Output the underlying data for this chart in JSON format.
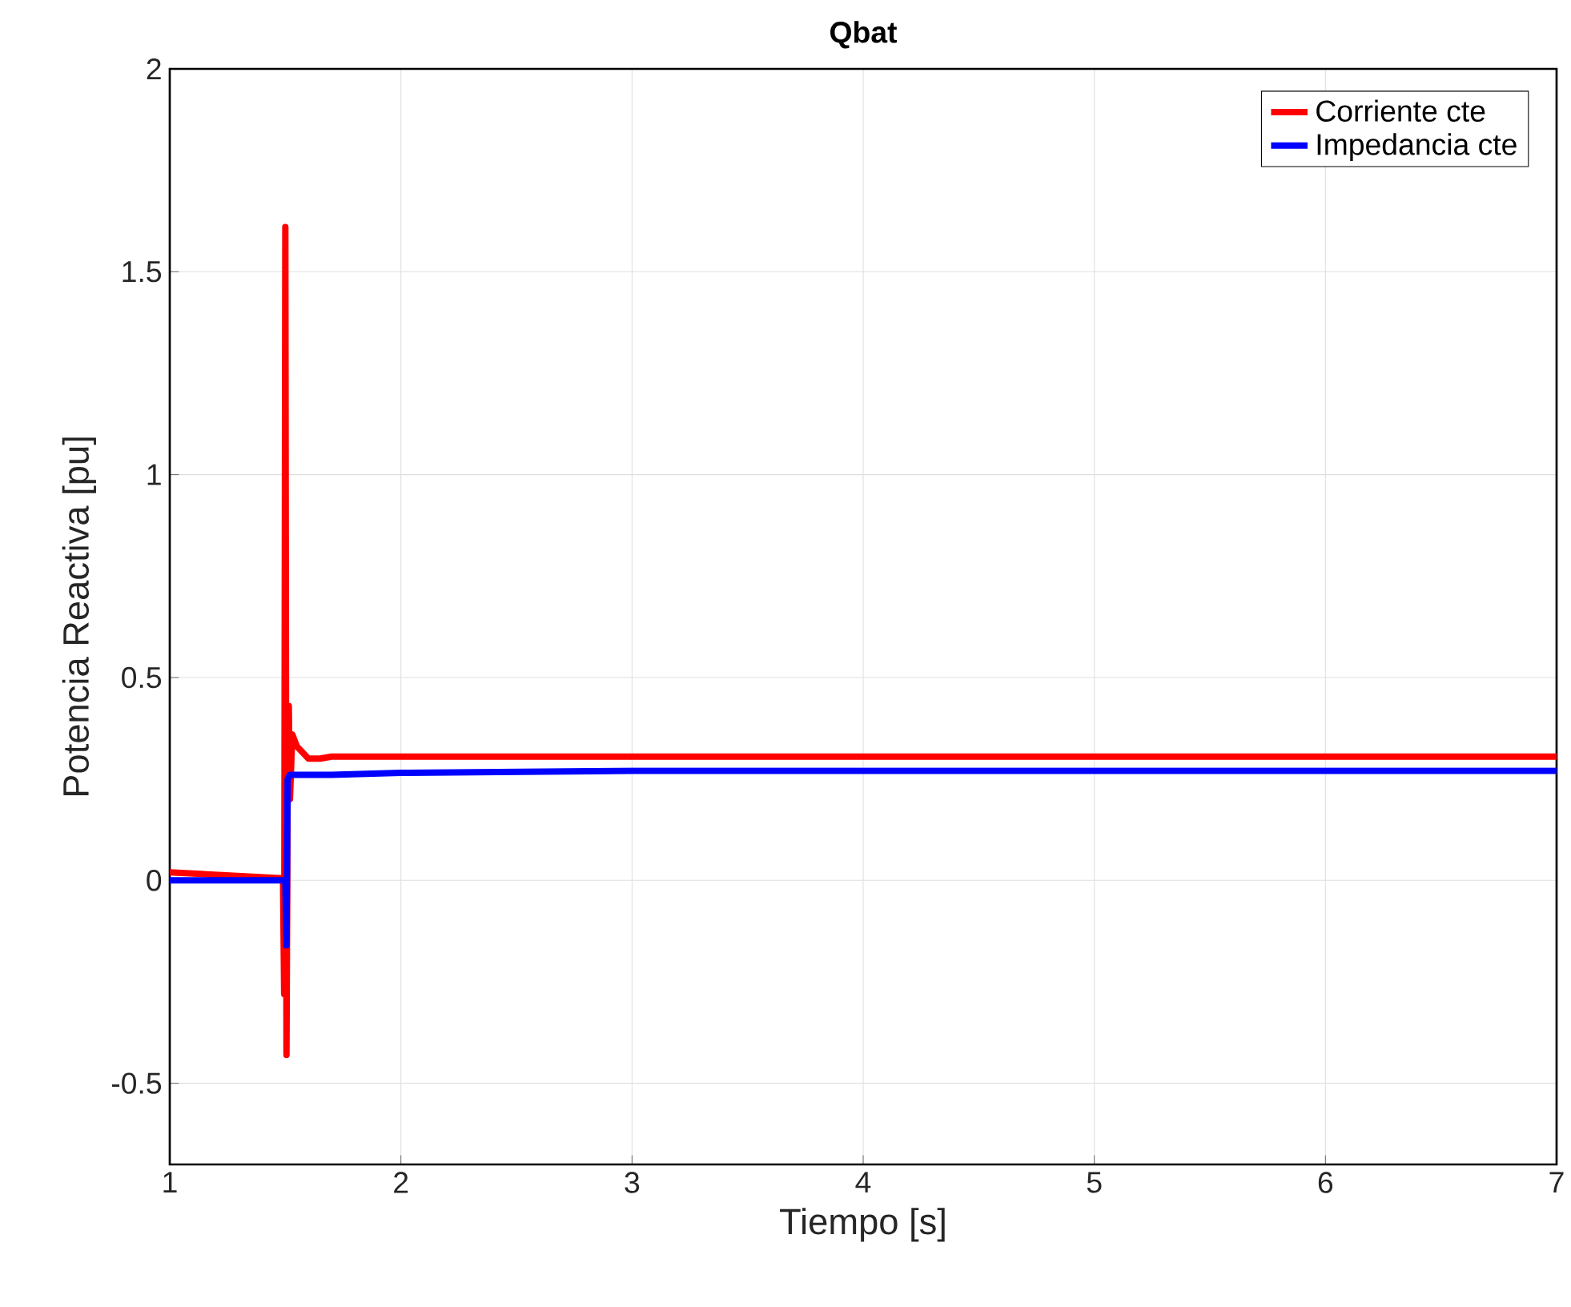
{
  "chart_data": {
    "type": "line",
    "title": "Qbat",
    "xlabel": "Tiempo [s]",
    "ylabel": "Potencia Reactiva [pu]",
    "xlim": [
      1,
      7
    ],
    "xticks": [
      1,
      2,
      3,
      4,
      5,
      6,
      7
    ],
    "ylim": [
      -0.7,
      2
    ],
    "yticks": [
      -0.5,
      0,
      0.5,
      1,
      1.5,
      2
    ],
    "grid": true,
    "legend": "top right",
    "line_style": "solid",
    "marker": "none",
    "series": [
      {
        "name": "Corriente cte",
        "color": "#ff0000",
        "x": [
          1,
          1.49,
          1.495,
          1.5,
          1.505,
          1.51,
          1.515,
          1.52,
          1.53,
          1.55,
          1.6,
          1.65,
          1.7,
          2,
          7
        ],
        "values": [
          0.02,
          0.005,
          -0.28,
          1.61,
          -0.43,
          0.22,
          0.43,
          0.2,
          0.36,
          0.33,
          0.3,
          0.3,
          0.305,
          0.305,
          0.305
        ]
      },
      {
        "name": "Impedancia cte",
        "color": "#0000ff",
        "x": [
          1,
          1.5,
          1.505,
          1.51,
          1.52,
          1.7,
          2,
          3,
          7
        ],
        "values": [
          0,
          0,
          -0.16,
          0.25,
          0.26,
          0.26,
          0.265,
          0.27,
          0.27
        ]
      }
    ]
  }
}
